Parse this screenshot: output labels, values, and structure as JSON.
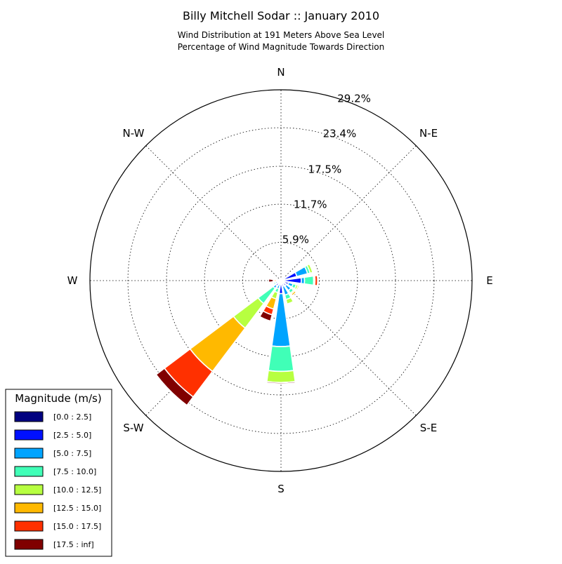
{
  "chart_data": {
    "type": "windrose",
    "title": "Billy Mitchell Sodar :: January 2010",
    "subtitle_lines": [
      "Wind Distribution at 191 Meters Above Sea Level",
      "Percentage of Wind Magnitude Towards Direction"
    ],
    "direction_labels": [
      "N",
      "N-E",
      "E",
      "S-E",
      "S",
      "S-W",
      "W",
      "N-W"
    ],
    "radial_ticks": [
      "5.9%",
      "11.7%",
      "17.5%",
      "23.4%",
      "29.2%"
    ],
    "radial_tick_values": [
      5.85,
      11.7,
      17.5,
      23.4,
      29.2
    ],
    "r_max": 29.2,
    "grid": true,
    "legend": {
      "title": "Magnitude (m/s)",
      "placement": "lower-left",
      "bins": [
        {
          "label": "[0.0 : 2.5]",
          "color": "#000080"
        },
        {
          "label": "[2.5 : 5.0]",
          "color": "#0010ff"
        },
        {
          "label": "[5.0 : 7.5]",
          "color": "#00a4ff"
        },
        {
          "label": "[7.5 : 10.0]",
          "color": "#40ffb7"
        },
        {
          "label": "[10.0 : 12.5]",
          "color": "#b7ff40"
        },
        {
          "label": "[12.5 : 15.0]",
          "color": "#ffb900"
        },
        {
          "label": "[15.0 : 17.5]",
          "color": "#ff3000"
        },
        {
          "label": "[17.5 : inf]",
          "color": "#800000"
        }
      ]
    },
    "sectors": [
      {
        "direction_deg": 0,
        "cumulative": [
          0.1,
          0.3,
          0.3,
          0.3,
          0.3,
          0.3,
          0.3,
          0.3
        ]
      },
      {
        "direction_deg": 22.5,
        "cumulative": [
          0.1,
          0.5,
          0.6,
          0.6,
          0.6,
          0.6,
          0.6,
          0.6
        ]
      },
      {
        "direction_deg": 45,
        "cumulative": [
          0.1,
          0.6,
          0.8,
          0.8,
          0.8,
          0.8,
          0.8,
          0.8
        ]
      },
      {
        "direction_deg": 67.5,
        "cumulative": [
          0.1,
          2.5,
          4.2,
          4.6,
          5.0,
          5.0,
          5.0,
          5.0
        ]
      },
      {
        "direction_deg": 90,
        "cumulative": [
          0.2,
          3.1,
          3.6,
          5.0,
          5.1,
          5.2,
          5.6,
          5.6
        ]
      },
      {
        "direction_deg": 112.5,
        "cumulative": [
          0.1,
          1.2,
          1.9,
          2.4,
          2.7,
          2.9,
          2.9,
          2.9
        ]
      },
      {
        "direction_deg": 135,
        "cumulative": [
          0.1,
          1.0,
          1.9,
          2.4,
          2.6,
          2.9,
          2.9,
          2.9
        ]
      },
      {
        "direction_deg": 157.5,
        "cumulative": [
          0.1,
          0.9,
          2.3,
          3.0,
          3.7,
          3.7,
          3.7,
          3.7
        ]
      },
      {
        "direction_deg": 180,
        "cumulative": [
          0.1,
          2.0,
          10.1,
          13.9,
          15.6,
          15.6,
          15.6,
          15.8
        ]
      },
      {
        "direction_deg": 202.5,
        "cumulative": [
          0.1,
          0.6,
          1.3,
          1.9,
          2.9,
          4.5,
          5.4,
          6.4
        ]
      },
      {
        "direction_deg": 225,
        "cumulative": [
          0.1,
          1.0,
          1.5,
          4.4,
          9.1,
          17.4,
          22.3,
          23.9
        ]
      },
      {
        "direction_deg": 247.5,
        "cumulative": [
          0.1,
          0.6,
          0.9,
          1.2,
          1.3,
          1.3,
          1.3,
          1.3
        ]
      },
      {
        "direction_deg": 270,
        "cumulative": [
          0.1,
          0.3,
          0.3,
          0.5,
          0.7,
          1.0,
          1.2,
          1.9
        ]
      },
      {
        "direction_deg": 292.5,
        "cumulative": [
          0.05,
          0.1,
          0.1,
          0.1,
          0.2,
          0.3,
          0.4,
          0.6
        ]
      },
      {
        "direction_deg": 315,
        "cumulative": [
          0.05,
          0.1,
          0.1,
          0.1,
          0.1,
          0.1,
          0.1,
          0.1
        ]
      },
      {
        "direction_deg": 337.5,
        "cumulative": [
          0.05,
          0.1,
          0.1,
          0.1,
          0.1,
          0.1,
          0.1,
          0.1
        ]
      }
    ]
  }
}
